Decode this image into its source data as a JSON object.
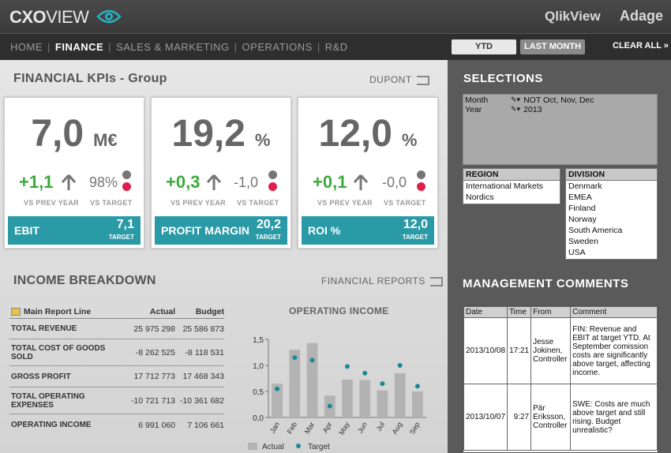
{
  "header": {
    "logo_bold": "CXO",
    "logo_thin": "VIEW",
    "brand1": "QlikView",
    "brand2": "Adage"
  },
  "nav": {
    "items": [
      "HOME",
      "FINANCE",
      "SALES & MARKETING",
      "OPERATIONS",
      "R&D"
    ],
    "active": "FINANCE",
    "ytd": "YTD",
    "last_month": "LAST MONTH",
    "clear_all": "CLEAR ALL »"
  },
  "kpis": {
    "title": "FINANCIAL KPIs - Group",
    "dupont": "DUPONT",
    "cards": [
      {
        "value": "7,0",
        "unit": "M€",
        "delta": "+1,1",
        "vs_target": "98%",
        "prev_label": "VS PREV YEAR",
        "target_label": "VS TARGET",
        "name": "EBIT",
        "target": "7,1",
        "target_caption": "TARGET"
      },
      {
        "value": "19,2",
        "unit": "%",
        "delta": "+0,3",
        "vs_target": "-1,0",
        "prev_label": "VS PREV YEAR",
        "target_label": "VS TARGET",
        "name": "PROFIT MARGIN",
        "target": "20,2",
        "target_caption": "TARGET"
      },
      {
        "value": "12,0",
        "unit": "%",
        "delta": "+0,1",
        "vs_target": "-0,0",
        "prev_label": "VS PREV YEAR",
        "target_label": "VS TARGET",
        "name": "ROI %",
        "target": "12,0",
        "target_caption": "TARGET"
      }
    ]
  },
  "income": {
    "title": "INCOME BREAKDOWN",
    "reports_link": "FINANCIAL REPORTS",
    "headers": [
      "Main Report Line",
      "Actual",
      "Budget"
    ],
    "rows": [
      {
        "label": "TOTAL REVENUE",
        "actual": "25 975 298",
        "budget": "25 586 873"
      },
      {
        "label": "TOTAL COST OF GOODS SOLD",
        "actual": "-8 262 525",
        "budget": "-8 118 531"
      },
      {
        "label": "GROSS PROFIT",
        "actual": "17 712 773",
        "budget": "17 468 343"
      },
      {
        "label": "TOTAL OPERATING EXPENSES",
        "actual": "-10 721 713",
        "budget": "-10 361 682"
      },
      {
        "label": "OPERATING INCOME",
        "actual": "6 991 060",
        "budget": "7 106 661"
      }
    ]
  },
  "chart_data": {
    "type": "bar",
    "title": "OPERATING INCOME",
    "categories": [
      "Jan",
      "Feb",
      "Mar",
      "Apr",
      "May",
      "Jun",
      "Jul",
      "Aug",
      "Sep"
    ],
    "series": [
      {
        "name": "Actual",
        "type": "bar",
        "values": [
          0.65,
          1.3,
          1.43,
          0.42,
          0.73,
          0.72,
          0.52,
          0.85,
          0.5
        ]
      },
      {
        "name": "Target",
        "type": "scatter",
        "values": [
          0.55,
          1.15,
          1.1,
          0.22,
          0.98,
          0.85,
          0.65,
          1.0,
          0.6
        ]
      }
    ],
    "yticks": [
      "0,0",
      "0,5",
      "1,0",
      "1,5"
    ],
    "ylim": [
      0,
      1.5
    ],
    "legend": "bottom",
    "colors": {
      "bar": "#b3b3b3",
      "dot": "#1a8a9a"
    }
  },
  "selections": {
    "title": "SELECTIONS",
    "fields": [
      {
        "name": "Month",
        "value": "NOT Oct, Nov, Dec"
      },
      {
        "name": "Year",
        "value": "2013"
      }
    ],
    "region_label": "REGION",
    "regions": [
      "International Markets",
      "Nordics"
    ],
    "division_label": "DIVISION",
    "divisions": [
      "Denmark",
      "EMEA",
      "Finland",
      "Norway",
      "South America",
      "Sweden",
      "USA"
    ]
  },
  "comments": {
    "title": "MANAGEMENT COMMENTS",
    "headers": [
      "Date",
      "Time",
      "From",
      "Comment"
    ],
    "rows": [
      {
        "date": "2013/10/08",
        "time": "17:21",
        "from": "Jesse Jokinen, Controller",
        "comment": "FIN: Revenue and EBIT at target YTD. At September comission costs are  significantly above target, affecting income."
      },
      {
        "date": "2013/10/07",
        "time": "9:27",
        "from": "Pär Eriksson, Controller",
        "comment": "SWE: Costs are much above target and still rising. Budget unrealistic?"
      }
    ]
  }
}
